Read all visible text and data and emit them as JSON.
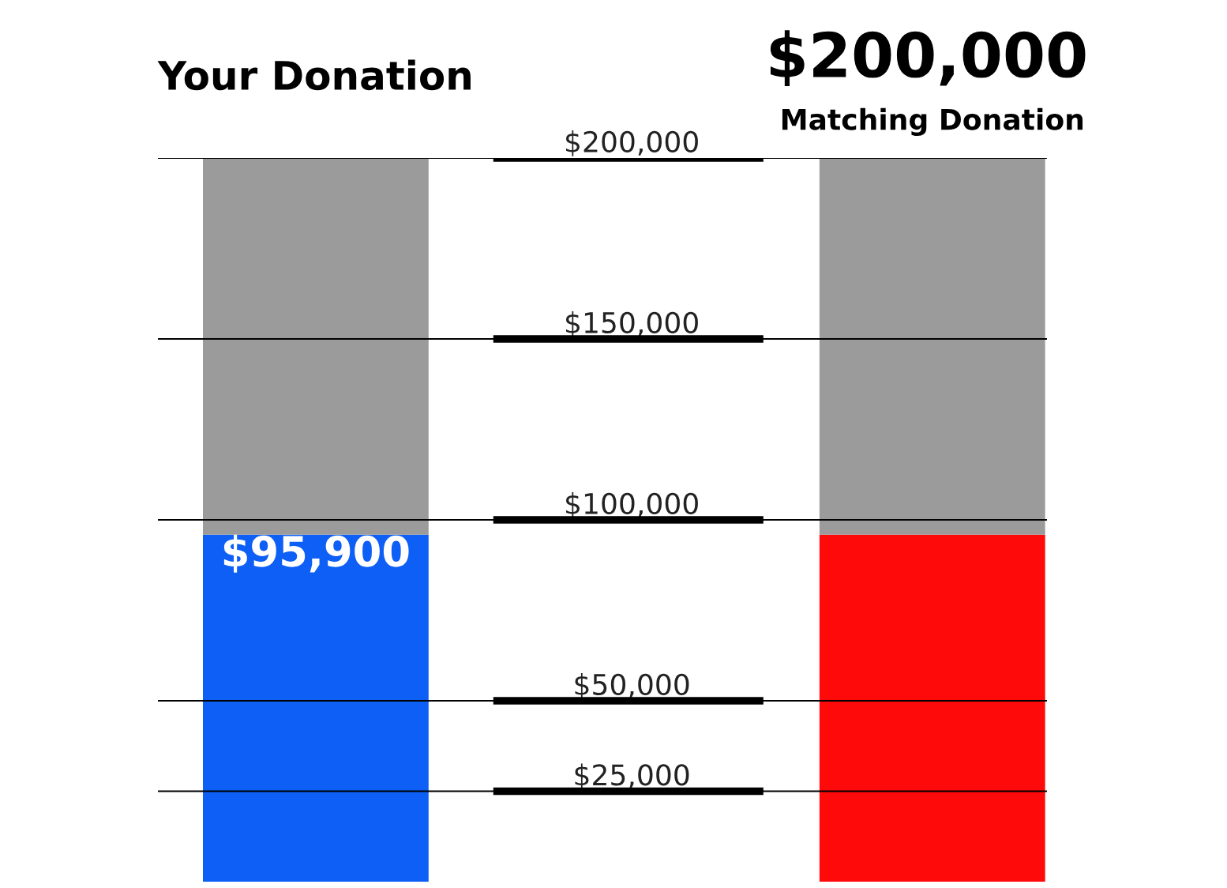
{
  "chart_data": {
    "type": "bar",
    "stacked": true,
    "categories": [
      "Your Donation",
      "Matching Donation"
    ],
    "series": [
      {
        "colors": [
          "#0d5ff5",
          "#ff0a0a"
        ],
        "values": [
          95900,
          95900
        ],
        "value_labels": [
          "$95,900",
          null
        ]
      },
      {
        "color": "#9b9b9b",
        "values": [
          104100,
          104100
        ]
      }
    ],
    "ylim": [
      0,
      200000
    ],
    "yticks": [
      {
        "value": 25000,
        "label": "$25,000"
      },
      {
        "value": 50000,
        "label": "$50,000"
      },
      {
        "value": 100000,
        "label": "$100,000"
      },
      {
        "value": 150000,
        "label": "$150,000"
      },
      {
        "value": 200000,
        "label": "$200,000"
      }
    ],
    "grid": "y",
    "legend": false,
    "annotations": [
      "$200,000"
    ]
  }
}
